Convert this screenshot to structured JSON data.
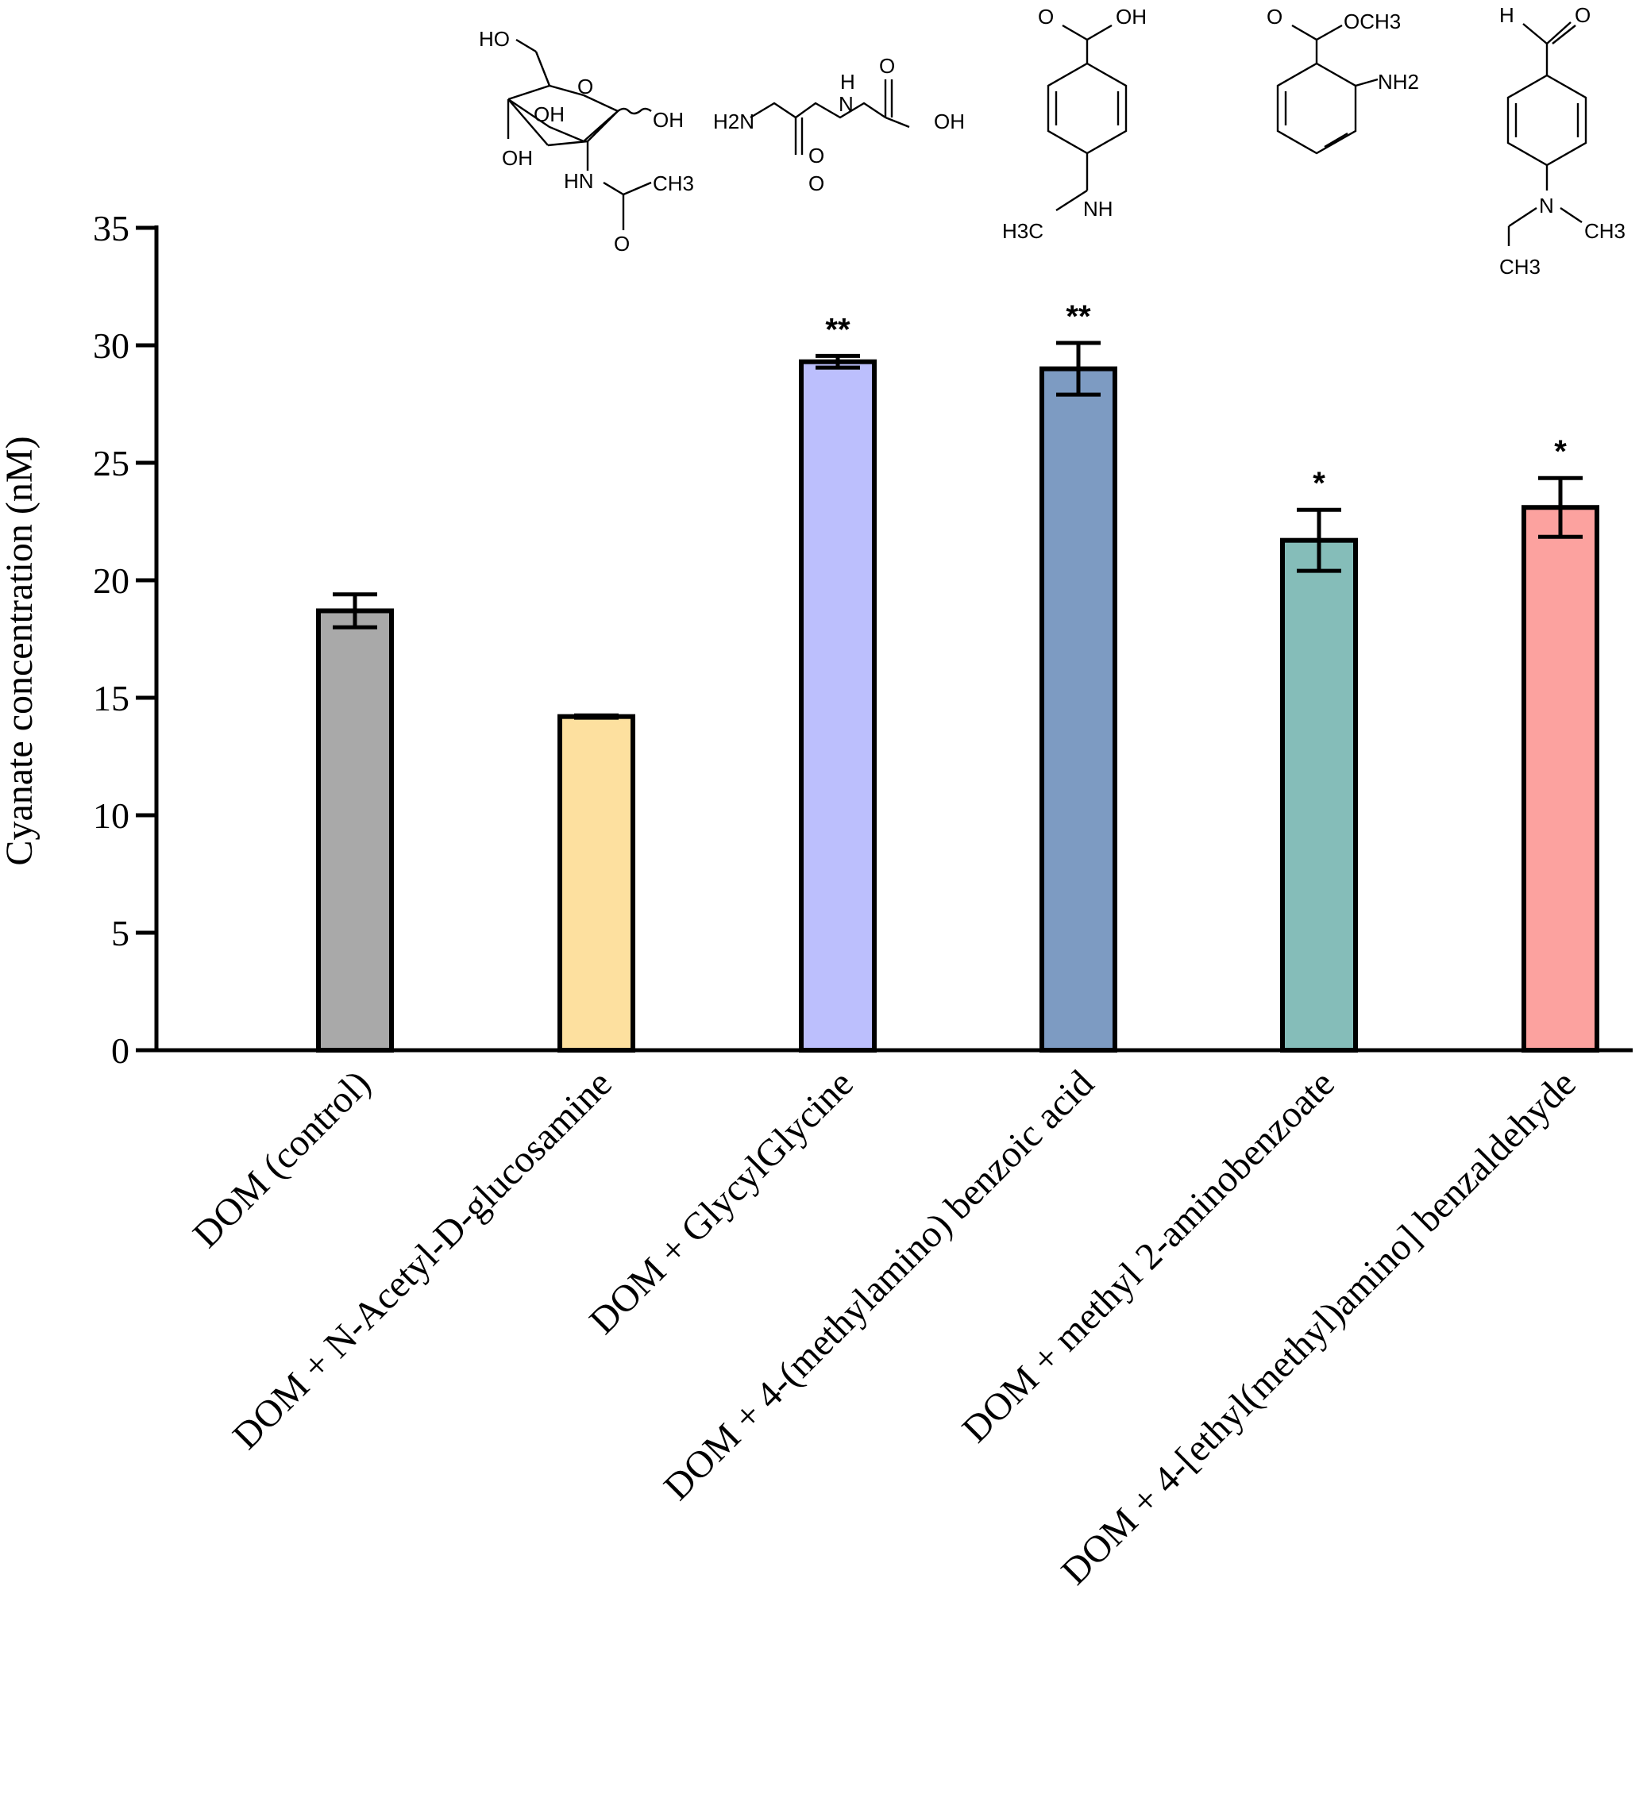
{
  "chart_data": {
    "type": "bar",
    "title": "",
    "xlabel": "",
    "ylabel": "Cyanate concentration (nM)",
    "ylim": [
      0,
      35
    ],
    "yticks": [
      0,
      5,
      10,
      15,
      20,
      25,
      30,
      35
    ],
    "grid": false,
    "categories": [
      "DOM (control)",
      "DOM + N-Acetyl-D-glucosamine",
      "DOM + GlycylGlycine",
      "DOM + 4-(methylamino) benzoic acid",
      "DOM + methyl 2-aminobenzoate",
      "DOM + 4-[ethyl(methyl)amino] benzaldehyde"
    ],
    "values": [
      18.7,
      14.2,
      29.3,
      29.0,
      21.7,
      23.1
    ],
    "errors": [
      0.7,
      0.05,
      0.25,
      1.1,
      1.3,
      1.25
    ],
    "significance": [
      "",
      "",
      "**",
      "**",
      "*",
      "*"
    ],
    "colors": [
      "#a9a9a9",
      "#fde09f",
      "#bcbffd",
      "#7d9bc2",
      "#85bdb9",
      "#fca29f"
    ]
  },
  "structures": {
    "glucosamine": [
      "HO",
      "OH",
      "OH",
      "OH",
      "HN",
      "CH3",
      "O",
      "O"
    ],
    "glycylglycine": [
      "H2N",
      "H",
      "N",
      "O",
      "OH",
      "O",
      "O"
    ],
    "methylaminobenzoic": [
      "O",
      "OH",
      "NH",
      "H3C"
    ],
    "methyl_aminobenzoate": [
      "O",
      "OCH3",
      "NH2"
    ],
    "benzaldehyde": [
      "H",
      "O",
      "N",
      "CH3",
      "CH3"
    ]
  }
}
